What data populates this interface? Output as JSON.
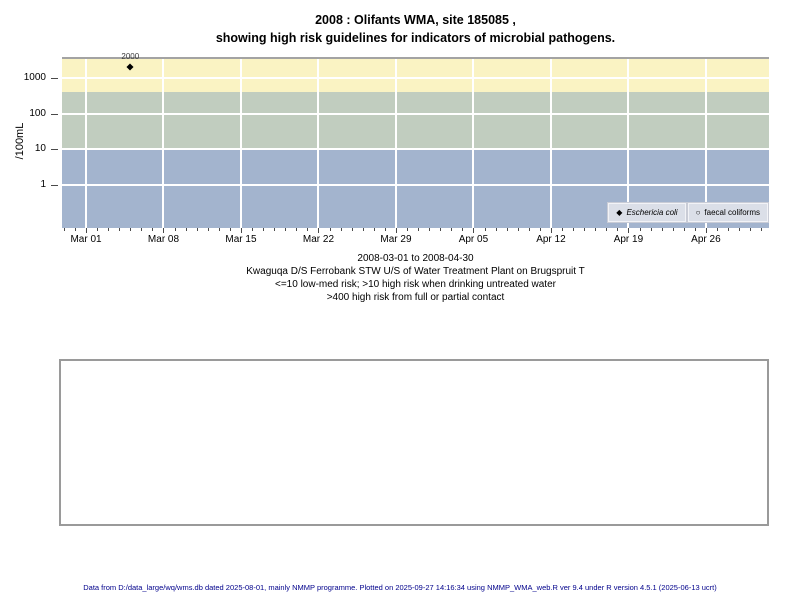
{
  "title": {
    "line1": "2008 : Olifants WMA, site 185085 ,",
    "line2": "showing high risk guidelines for indicators of microbial pathogens."
  },
  "chart_data": {
    "type": "scatter",
    "title": "2008 : Olifants WMA, site 185085 , showing high risk guidelines for indicators of microbial pathogens.",
    "x_axis": {
      "start_date": "2008-03-01",
      "end_date": "2008-04-30",
      "tick_labels": [
        "Mar 01",
        "Mar 08",
        "Mar 15",
        "Mar 22",
        "Mar 29",
        "Apr 05",
        "Apr 12",
        "Apr 19",
        "Apr 26"
      ],
      "tick_interval_days": 7,
      "minor_tick_interval_days": 1
    },
    "y_axis": {
      "label": "/100mL",
      "scale": "log10",
      "ticks": [
        1,
        10,
        100,
        1000
      ],
      "tick_labels": [
        "1",
        "10",
        "100",
        "1000"
      ],
      "range_approx": [
        0.06,
        3300
      ]
    },
    "grid": "white lines at weekly x ticks and decade y ticks",
    "series": [
      {
        "name": "Eschericia coli",
        "marker": "filled-diamond",
        "points": [
          {
            "date_approx": "2008-03-05",
            "value": 2000,
            "label": "2000"
          }
        ]
      },
      {
        "name": "faecal coliforms",
        "marker": "open-circle",
        "points": []
      }
    ],
    "risk_bands": [
      {
        "name": "high-contact-risk",
        "min": 400,
        "max": null,
        "color": "#faf3c3",
        "meaning": ">400 high risk from full or partial contact"
      },
      {
        "name": "high-drinking-risk",
        "min": 10,
        "max": 400,
        "color": "#c1cdbf",
        "meaning": ">10 high risk when drinking untreated water"
      },
      {
        "name": "low-med-risk",
        "min": null,
        "max": 10,
        "color": "#a3b4ce",
        "meaning": "<=10 low-med risk"
      }
    ],
    "legend": {
      "position": "bottom-right",
      "background": "#dbdfe8",
      "entries": [
        {
          "marker": "filled-diamond",
          "glyph": "◆",
          "label": "Eschericia coli",
          "italic": true
        },
        {
          "marker": "open-circle",
          "glyph": "○",
          "label": "faecal coliforms",
          "italic": false
        }
      ]
    }
  },
  "subtitle": {
    "line1": "2008-03-01 to 2008-04-30",
    "line2": "Kwaguqa D/S Ferrobank STW U/S of Water Treatment Plant on Brugspruit T",
    "line3": "<=10 low-med risk; >10 high risk when drinking untreated water",
    "line4": ">400 high risk from full or partial contact"
  },
  "footer": {
    "text": "Data from D:/data_large/wq/wms.db dated 2025-08-01, mainly NMMP programme. Plotted on 2025-09-27 14:16:34 using NMMP_WMA_web.R ver 9.4 under R version 4.5.1 (2025-06-13 ucrt)"
  }
}
